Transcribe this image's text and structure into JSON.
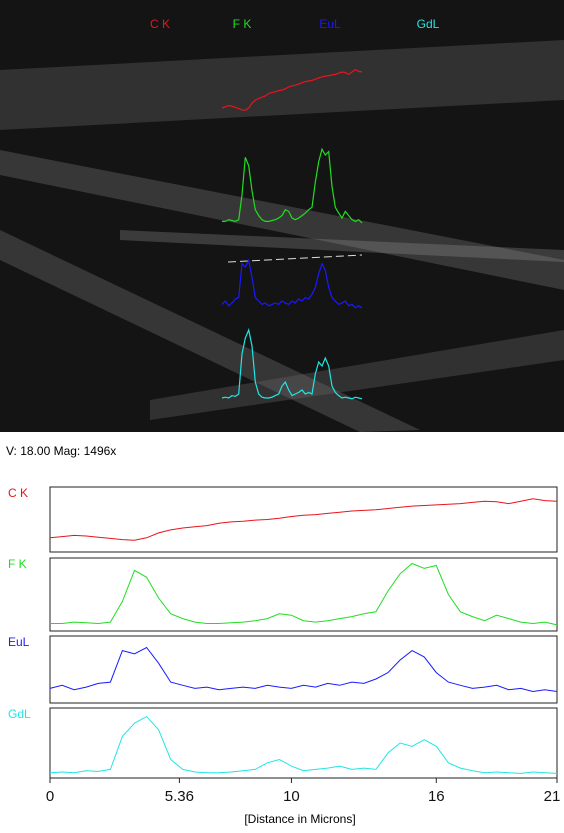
{
  "chart_data": {
    "type": "line",
    "annotation": "V: 18.00 Mag: 1496x",
    "xlabel": "[Distance in Microns]",
    "xlim": [
      0,
      21
    ],
    "xticks": [
      0,
      5.36,
      10,
      16,
      21
    ],
    "ylim": [
      0,
      100
    ],
    "x": [
      0,
      0.5,
      1,
      1.5,
      2,
      2.5,
      3,
      3.5,
      4,
      4.5,
      5,
      5.5,
      6,
      6.5,
      7,
      7.5,
      8,
      8.5,
      9,
      9.5,
      10,
      10.5,
      11,
      11.5,
      12,
      12.5,
      13,
      13.5,
      14,
      14.5,
      15,
      15.5,
      16,
      16.5,
      17,
      17.5,
      18,
      18.5,
      19,
      19.5,
      20,
      20.5,
      21
    ],
    "series": [
      {
        "name": "C K",
        "color": "#e8141c",
        "values": [
          20,
          22,
          24,
          23,
          21,
          19,
          17,
          16,
          20,
          28,
          33,
          36,
          38,
          40,
          44,
          46,
          47,
          49,
          50,
          52,
          55,
          57,
          58,
          60,
          62,
          64,
          65,
          66,
          68,
          70,
          72,
          73,
          74,
          75,
          76,
          78,
          80,
          79,
          76,
          80,
          84,
          81,
          80
        ]
      },
      {
        "name": "F K",
        "color": "#22dd22",
        "values": [
          8,
          8,
          10,
          9,
          8,
          10,
          40,
          85,
          75,
          45,
          22,
          15,
          10,
          8,
          8,
          9,
          10,
          12,
          15,
          22,
          20,
          12,
          10,
          12,
          15,
          18,
          22,
          25,
          55,
          80,
          95,
          88,
          92,
          50,
          25,
          18,
          12,
          20,
          15,
          10,
          8,
          10,
          6
        ]
      },
      {
        "name": "EuL",
        "color": "#1a1aff",
        "values": [
          20,
          25,
          18,
          22,
          28,
          30,
          80,
          75,
          85,
          60,
          30,
          25,
          20,
          22,
          18,
          20,
          22,
          20,
          25,
          22,
          20,
          25,
          22,
          28,
          25,
          30,
          28,
          35,
          45,
          65,
          80,
          70,
          45,
          30,
          25,
          20,
          22,
          25,
          18,
          20,
          15,
          18,
          15
        ]
      },
      {
        "name": "GdL",
        "color": "#22e5e5",
        "values": [
          5,
          6,
          5,
          8,
          7,
          10,
          60,
          80,
          90,
          70,
          25,
          10,
          6,
          5,
          5,
          6,
          8,
          10,
          20,
          25,
          15,
          8,
          10,
          12,
          15,
          10,
          12,
          10,
          35,
          50,
          45,
          55,
          45,
          20,
          12,
          8,
          5,
          6,
          5,
          4,
          6,
          5,
          4
        ]
      }
    ]
  }
}
